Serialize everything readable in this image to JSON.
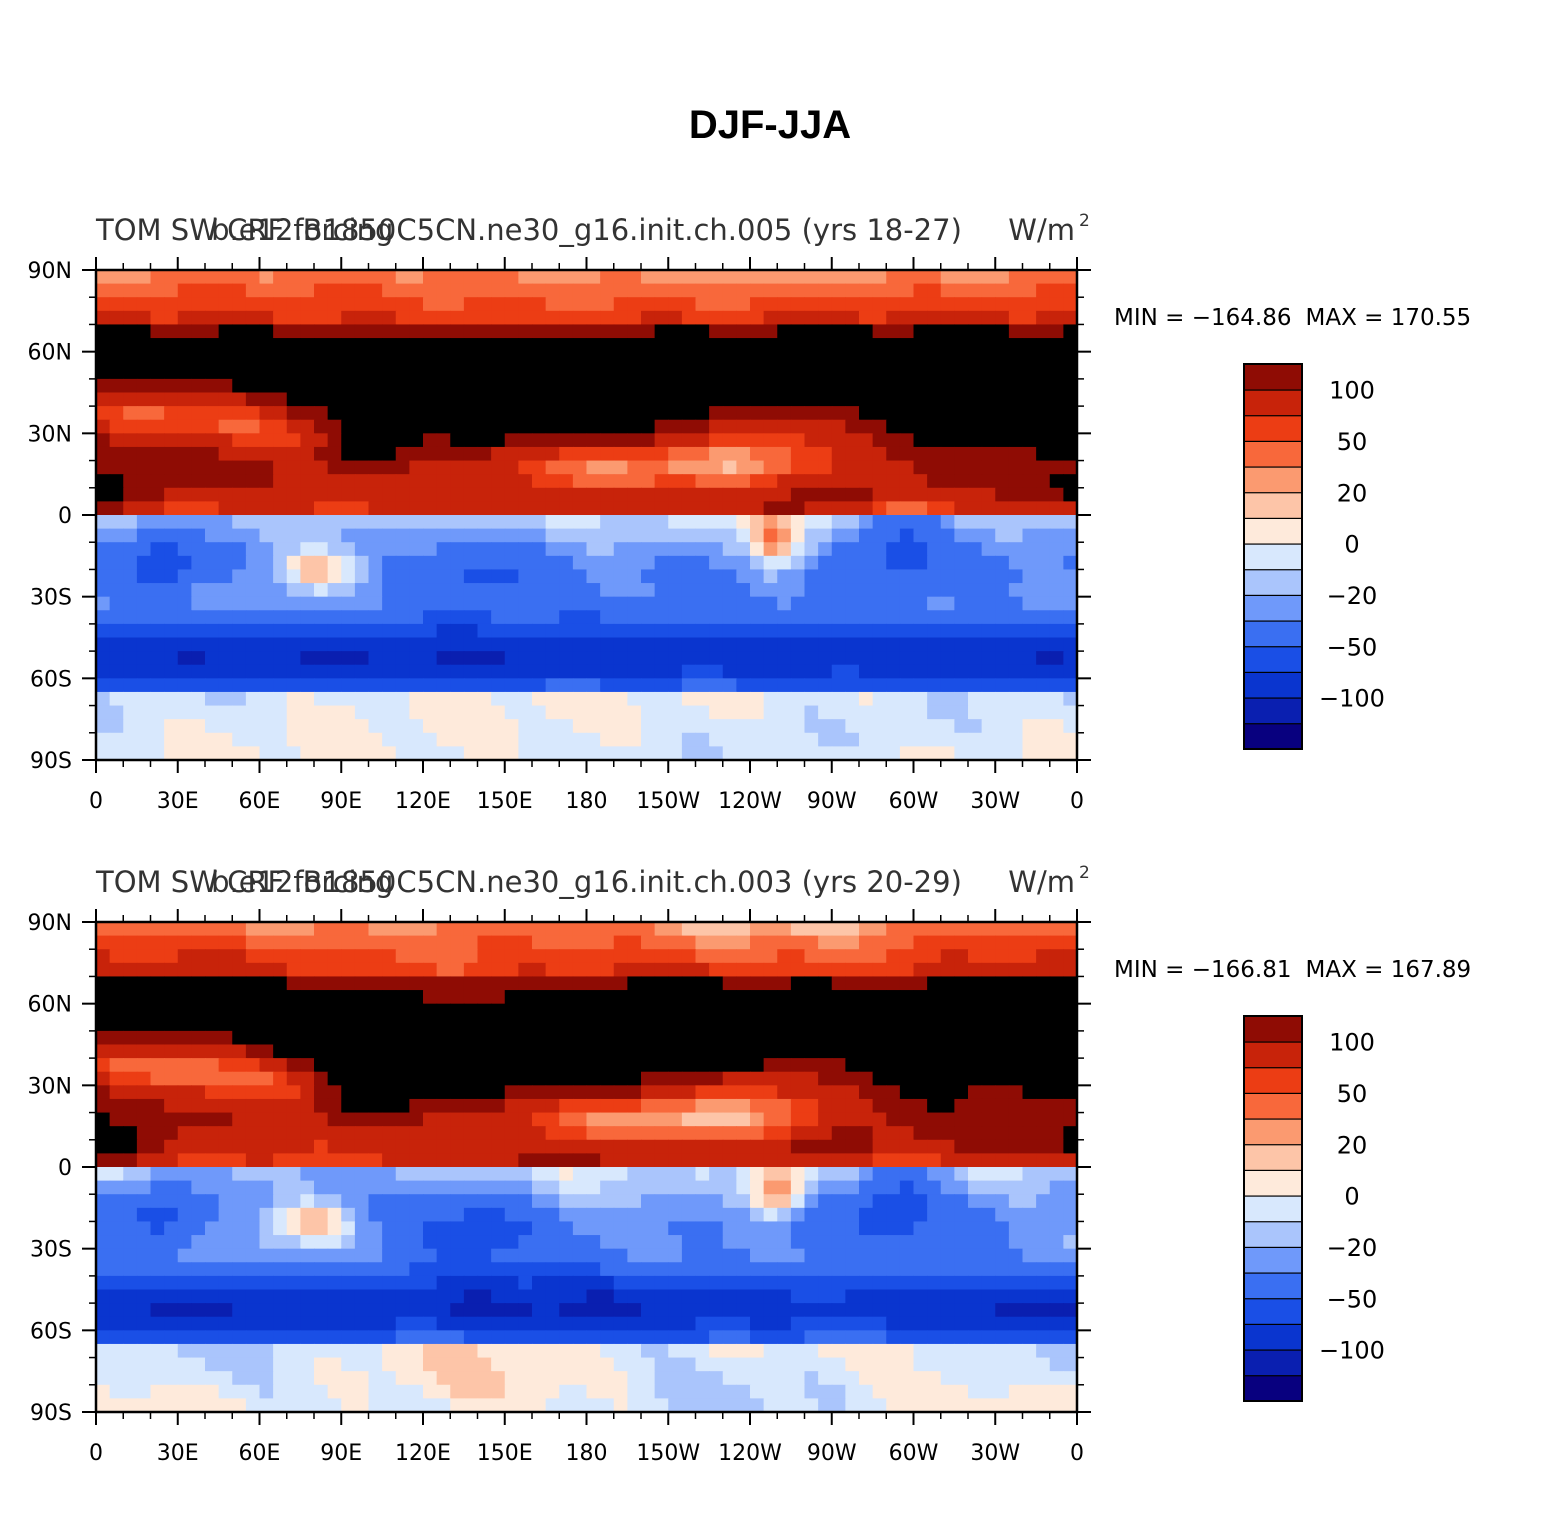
{
  "title": "DJF-JJA",
  "palette": [
    "#08007f",
    "#0a1fb0",
    "#0a35cf",
    "#1a4fe6",
    "#3a6ff2",
    "#6f99fa",
    "#aac5fc",
    "#d8e8fd",
    "#feeadb",
    "#fdc5a8",
    "#fb9a70",
    "#f8683b",
    "#ec3d14",
    "#c8230a",
    "#8f0c04"
  ],
  "chart_data": [
    {
      "type": "heatmap",
      "title_left": "TOM SW CRF forcing",
      "title_center": "b.e12.B1850C5CN.ne30_g16.init.ch.005 (yrs 18-27)",
      "units_prefix": "W/m",
      "units_exp": "2",
      "min_label": "MIN = −164.86",
      "max_label": "MAX = 170.55",
      "min": -164.86,
      "max": 170.55,
      "x_ticks": [
        "0",
        "30E",
        "60E",
        "90E",
        "120E",
        "150E",
        "180",
        "150W",
        "120W",
        "90W",
        "60W",
        "30W",
        "0"
      ],
      "y_ticks": [
        "90N",
        "60N",
        "30N",
        "0",
        "30S",
        "60S",
        "90S"
      ],
      "contour_levels": [
        -150,
        -125,
        -100,
        -75,
        -50,
        -35,
        -20,
        -10,
        0,
        10,
        20,
        35,
        50,
        75,
        100,
        125
      ],
      "colorbar_labels": [
        "100",
        "50",
        "20",
        "0",
        "−20",
        "−50",
        "−100"
      ],
      "colorbar_values": [
        100,
        50,
        20,
        0,
        -20,
        -50,
        -100
      ]
    },
    {
      "type": "heatmap",
      "title_left": "TOM SW CRF forcing",
      "title_center": "b.e12.B1850C5CN.ne30_g16.init.ch.003 (yrs 20-29)",
      "units_prefix": "W/m",
      "units_exp": "2",
      "min_label": "MIN = −166.81",
      "max_label": "MAX = 167.89",
      "min": -166.81,
      "max": 167.89,
      "x_ticks": [
        "0",
        "30E",
        "60E",
        "90E",
        "120E",
        "150E",
        "180",
        "150W",
        "120W",
        "90W",
        "60W",
        "30W",
        "0"
      ],
      "y_ticks": [
        "90N",
        "60N",
        "30N",
        "0",
        "30S",
        "60S",
        "90S"
      ],
      "contour_levels": [
        -150,
        -125,
        -100,
        -75,
        -50,
        -35,
        -20,
        -10,
        0,
        10,
        20,
        35,
        50,
        75,
        100,
        125
      ],
      "colorbar_labels": [
        "100",
        "50",
        "20",
        "0",
        "−20",
        "−50",
        "−100"
      ],
      "colorbar_values": [
        100,
        50,
        20,
        0,
        -20,
        -50,
        -100
      ]
    }
  ]
}
